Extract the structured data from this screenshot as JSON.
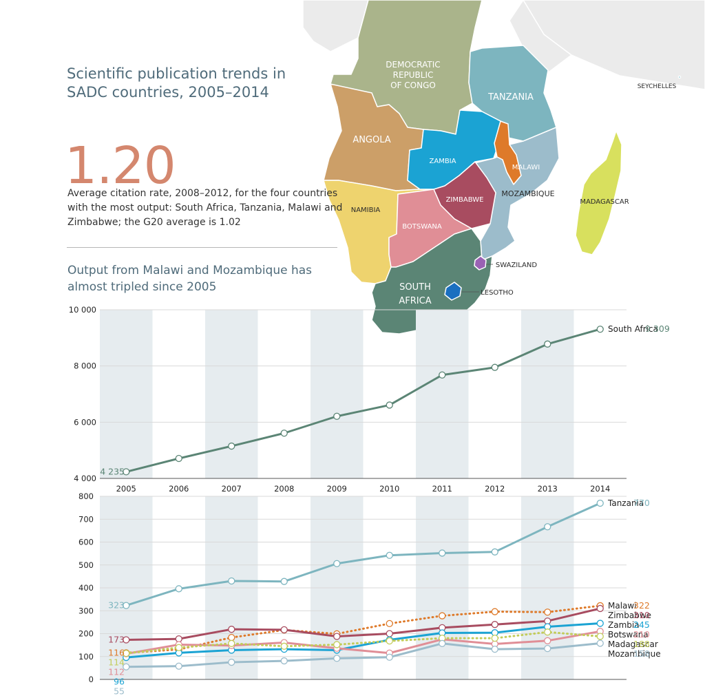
{
  "title": "Scientific publication trends in SADC countries, 2005–2014",
  "highlight": {
    "value": "1.20",
    "caption": "Average citation rate, 2008–2012, for the four countries with the most output: South Africa, Tanzania, Malawi and Zimbabwe; the G20 average is 1.02"
  },
  "subtitle": "Output from Malawi and Mozambique has almost tripled since 2005",
  "map": {
    "labels": {
      "drc": [
        "DEMOCRATIC",
        "REPUBLIC",
        "OF CONGO"
      ],
      "tanzania": "TANZANIA",
      "angola": "ANGOLA",
      "zambia": "ZAMBIA",
      "malawi": "MALAWI",
      "mozambique": "MOZAMBIQUE",
      "zimbabwe": "ZIMBABWE",
      "namibia": "NAMIBIA",
      "botswana": "BOTSWANA",
      "madagascar": "MADAGASCAR",
      "seychelles": "SEYCHELLES",
      "swaziland": "SWAZILAND",
      "south_africa": [
        "SOUTH",
        "AFRICA"
      ],
      "lesotho": "LESOTHO"
    },
    "colors": {
      "land": "#ebebeb",
      "drc": "#aab48b",
      "tanzania": "#7db5bf",
      "angola": "#cc9f68",
      "zambia": "#1ba3d3",
      "malawi": "#de7a2a",
      "mozambique": "#9cbccb",
      "zimbabwe": "#a84c60",
      "namibia": "#eed36e",
      "botswana": "#e08e96",
      "south_africa": "#5b8575",
      "lesotho": "#1a6fc0",
      "swaziland": "#9a62b4",
      "madagascar": "#d8e05e",
      "seychelles": "#6bb8c8"
    }
  },
  "chart_data": [
    {
      "type": "line",
      "categories": [
        "2005",
        "2006",
        "2007",
        "2008",
        "2009",
        "2010",
        "2011",
        "2012",
        "2013",
        "2014"
      ],
      "ylim": [
        4000,
        10000
      ],
      "yticks": [
        4000,
        6000,
        8000,
        10000
      ],
      "ytick_labels": [
        "4 000",
        "6 000",
        "8 000",
        "10 000"
      ],
      "grid": true,
      "series": [
        {
          "name": "South Africa",
          "color": "#5b8575",
          "style": "solid",
          "values": [
            4235,
            4710,
            5150,
            5610,
            6210,
            6610,
            7680,
            7950,
            8780,
            9309
          ],
          "start_label": "4 235",
          "end_label": "9 309"
        }
      ]
    },
    {
      "type": "line",
      "categories": [
        "2005",
        "2006",
        "2007",
        "2008",
        "2009",
        "2010",
        "2011",
        "2012",
        "2013",
        "2014"
      ],
      "ylim": [
        0,
        800
      ],
      "yticks": [
        0,
        100,
        200,
        300,
        400,
        500,
        600,
        700,
        800
      ],
      "ytick_labels": [
        "0",
        "100",
        "200",
        "300",
        "400",
        "500",
        "600",
        "700",
        "800"
      ],
      "grid": true,
      "series": [
        {
          "name": "Tanzania",
          "color": "#7db5bf",
          "style": "solid",
          "values": [
            323,
            396,
            430,
            428,
            506,
            542,
            552,
            557,
            667,
            770
          ],
          "start_label": "323",
          "end_label": "770"
        },
        {
          "name": "Malawi",
          "color": "#de7a2a",
          "style": "dotted",
          "values": [
            116,
            131,
            183,
            216,
            199,
            244,
            278,
            296,
            294,
            322
          ],
          "start_label": "116",
          "end_label": "322"
        },
        {
          "name": "Zimbabwe",
          "color": "#a84c60",
          "style": "solid",
          "values": [
            173,
            177,
            219,
            217,
            188,
            200,
            226,
            240,
            255,
            310
          ],
          "start_label": "173",
          "end_label": "310"
        },
        {
          "name": "Zambia",
          "color": "#1ba3d3",
          "style": "solid",
          "values": [
            96,
            116,
            128,
            132,
            128,
            173,
            203,
            204,
            230,
            245
          ],
          "start_label": "96",
          "end_label": "245"
        },
        {
          "name": "Botswana",
          "color": "#e08e96",
          "style": "solid",
          "values": [
            112,
            152,
            148,
            161,
            136,
            115,
            175,
            155,
            169,
            210
          ],
          "start_label": "112",
          "end_label": "210"
        },
        {
          "name": "Madagascar",
          "color": "#c2cc5a",
          "style": "dotted",
          "values": [
            114,
            139,
            157,
            145,
            152,
            168,
            180,
            180,
            207,
            188
          ],
          "start_label": "114",
          "end_label": "188"
        },
        {
          "name": "Mozambique",
          "color": "#9cbccb",
          "style": "solid",
          "values": [
            55,
            58,
            75,
            81,
            92,
            97,
            157,
            132,
            135,
            158
          ],
          "start_label": "55",
          "end_label": "158"
        }
      ]
    }
  ]
}
